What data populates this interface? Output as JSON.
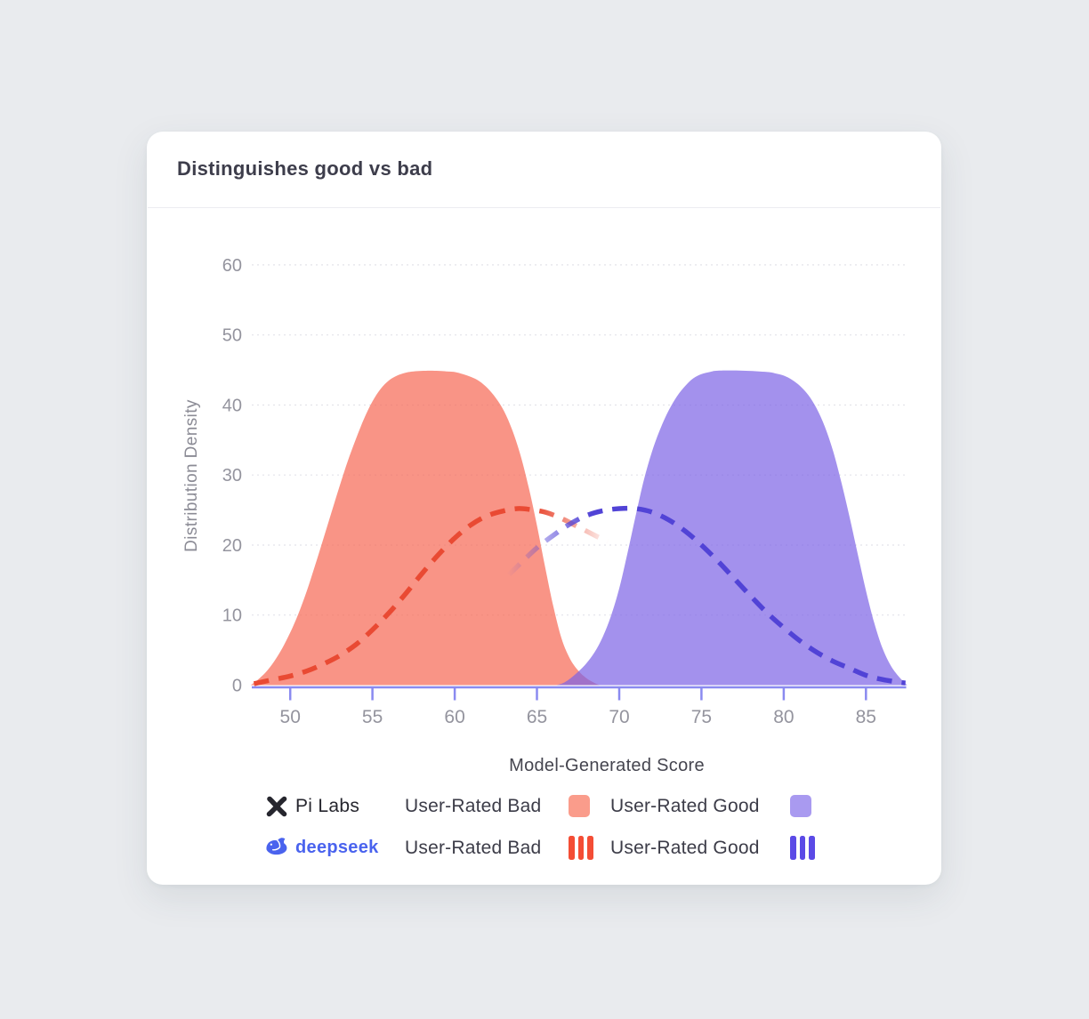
{
  "card": {
    "title": "Distinguishes good vs bad"
  },
  "chart_data": {
    "type": "area",
    "title": "Distinguishes good vs bad",
    "xlabel": "Model-Generated Score",
    "ylabel": "Distribution Density",
    "x_ticks": [
      50,
      55,
      60,
      65,
      70,
      75,
      80,
      85
    ],
    "y_ticks": [
      0,
      10,
      20,
      30,
      40,
      50,
      60
    ],
    "xlim": [
      47.6,
      87.5
    ],
    "ylim": [
      0,
      63
    ],
    "grid": "horizontal-dashed",
    "legend_position": "bottom",
    "axis_color": "#8a8af0",
    "grid_color": "#e3e3ea",
    "tick_label_color": "#94949e",
    "series": [
      {
        "name": "Pi Labs — User-Rated Bad",
        "style": "filled-area",
        "color": "#f66752",
        "fill_opacity": 0.7,
        "peak": 44.9,
        "points": [
          [
            47.6,
            0
          ],
          [
            48,
            0.7
          ],
          [
            48.5,
            1.8
          ],
          [
            49,
            3.3
          ],
          [
            49.5,
            5.2
          ],
          [
            50,
            7.5
          ],
          [
            50.5,
            10.2
          ],
          [
            51,
            13.4
          ],
          [
            51.5,
            17
          ],
          [
            52,
            20.8
          ],
          [
            52.5,
            24.6
          ],
          [
            53,
            28.4
          ],
          [
            53.5,
            32
          ],
          [
            54,
            35.2
          ],
          [
            54.5,
            38.1
          ],
          [
            55,
            40.5
          ],
          [
            55.5,
            42.3
          ],
          [
            56,
            43.5
          ],
          [
            56.5,
            44.2
          ],
          [
            57,
            44.6
          ],
          [
            57.5,
            44.8
          ],
          [
            58.5,
            44.9
          ],
          [
            59.5,
            44.8
          ],
          [
            60,
            44.7
          ],
          [
            60.5,
            44.4
          ],
          [
            61,
            44
          ],
          [
            61.5,
            43.4
          ],
          [
            62,
            42.4
          ],
          [
            62.5,
            41
          ],
          [
            63,
            39.1
          ],
          [
            63.5,
            36.4
          ],
          [
            64,
            32.8
          ],
          [
            64.5,
            28.2
          ],
          [
            65,
            22.8
          ],
          [
            65.5,
            16.8
          ],
          [
            66,
            11.2
          ],
          [
            66.5,
            6.6
          ],
          [
            67,
            3.8
          ],
          [
            67.5,
            2.1
          ],
          [
            68,
            1
          ],
          [
            68.5,
            0.3
          ],
          [
            68.8,
            0
          ]
        ]
      },
      {
        "name": "Pi Labs — User-Rated Good",
        "style": "filled-area",
        "color": "#7c63e5",
        "fill_opacity": 0.7,
        "peak": 44.9,
        "points": [
          [
            66.2,
            0
          ],
          [
            66.6,
            0.3
          ],
          [
            67,
            0.9
          ],
          [
            67.5,
            1.9
          ],
          [
            68,
            3.1
          ],
          [
            68.5,
            4.7
          ],
          [
            69,
            6.9
          ],
          [
            69.5,
            9.9
          ],
          [
            70,
            13.8
          ],
          [
            70.5,
            18.8
          ],
          [
            71,
            24.2
          ],
          [
            71.5,
            29.3
          ],
          [
            72,
            33.4
          ],
          [
            72.5,
            36.6
          ],
          [
            73,
            39.2
          ],
          [
            73.5,
            41.2
          ],
          [
            74,
            42.7
          ],
          [
            74.5,
            43.8
          ],
          [
            75,
            44.4
          ],
          [
            75.5,
            44.7
          ],
          [
            76,
            44.9
          ],
          [
            77.5,
            44.9
          ],
          [
            79,
            44.7
          ],
          [
            79.5,
            44.5
          ],
          [
            80,
            44.2
          ],
          [
            80.5,
            43.6
          ],
          [
            81,
            42.7
          ],
          [
            81.5,
            41.4
          ],
          [
            82,
            39.5
          ],
          [
            82.5,
            36.9
          ],
          [
            83,
            33.4
          ],
          [
            83.5,
            29
          ],
          [
            84,
            24
          ],
          [
            84.5,
            18.7
          ],
          [
            85,
            13.5
          ],
          [
            85.5,
            8.9
          ],
          [
            86,
            5.3
          ],
          [
            86.5,
            2.8
          ],
          [
            87,
            1.2
          ],
          [
            87.5,
            0
          ]
        ]
      },
      {
        "name": "deepseek — User-Rated Bad",
        "style": "dashed-line",
        "color": "#e94a33",
        "peak": 25.2,
        "fade": {
          "from": 65,
          "to": 69.4,
          "direction": "out"
        },
        "points": [
          [
            47.8,
            0.2
          ],
          [
            49,
            0.8
          ],
          [
            50,
            1.3
          ],
          [
            51,
            2
          ],
          [
            52,
            3
          ],
          [
            53,
            4.2
          ],
          [
            54,
            5.8
          ],
          [
            55,
            7.9
          ],
          [
            56,
            10.3
          ],
          [
            57,
            13
          ],
          [
            58,
            15.9
          ],
          [
            59,
            18.6
          ],
          [
            60,
            21
          ],
          [
            61,
            22.9
          ],
          [
            62,
            24.2
          ],
          [
            63,
            24.9
          ],
          [
            63.8,
            25.2
          ],
          [
            64.5,
            25.1
          ],
          [
            65.5,
            24.7
          ],
          [
            66.5,
            23.8
          ],
          [
            67.5,
            22.6
          ],
          [
            68.5,
            21.4
          ],
          [
            69.3,
            20.5
          ]
        ]
      },
      {
        "name": "deepseek — User-Rated Good",
        "style": "dashed-line",
        "color": "#5143d6",
        "peak": 25.2,
        "fade": {
          "from": 63.3,
          "to": 68.3,
          "direction": "in"
        },
        "points": [
          [
            63.3,
            15.8
          ],
          [
            64,
            17.4
          ],
          [
            65,
            19.6
          ],
          [
            66,
            21.4
          ],
          [
            67,
            23
          ],
          [
            68,
            24.2
          ],
          [
            69,
            24.9
          ],
          [
            70,
            25.2
          ],
          [
            71,
            25.2
          ],
          [
            72,
            24.7
          ],
          [
            73,
            23.6
          ],
          [
            74,
            22
          ],
          [
            75,
            20
          ],
          [
            76,
            17.7
          ],
          [
            77,
            15.2
          ],
          [
            78,
            12.7
          ],
          [
            79,
            10.3
          ],
          [
            80,
            8.2
          ],
          [
            81,
            6.3
          ],
          [
            82,
            4.7
          ],
          [
            83,
            3.4
          ],
          [
            84,
            2.4
          ],
          [
            85,
            1.4
          ],
          [
            86,
            0.8
          ],
          [
            87,
            0.4
          ],
          [
            87.4,
            0.3
          ]
        ]
      }
    ]
  },
  "legend": {
    "rows": [
      {
        "brand": "Pi Labs",
        "items": [
          {
            "label": "User-Rated Bad",
            "swatch": "square",
            "color": "#fa9c8b"
          },
          {
            "label": "User-Rated Good",
            "swatch": "square",
            "color": "#a99af0"
          }
        ]
      },
      {
        "brand": "deepseek",
        "items": [
          {
            "label": "User-Rated Bad",
            "swatch": "dashes",
            "color": "#f44d35"
          },
          {
            "label": "User-Rated Good",
            "swatch": "dashes",
            "color": "#5b4ae6"
          }
        ]
      }
    ]
  },
  "colors": {
    "page_background": "#e9ebee",
    "card_background": "#ffffff",
    "title_text": "#3d3d4b",
    "axis_line": "#8a8af0",
    "deepseek_brand": "#4a63ee",
    "pi_labs_brand": "#26262e"
  }
}
